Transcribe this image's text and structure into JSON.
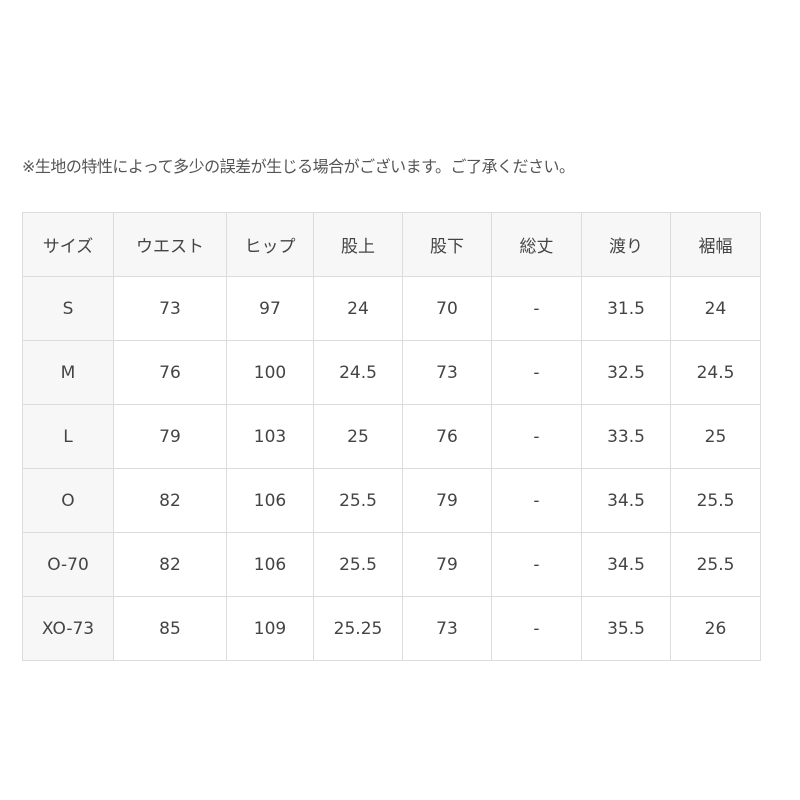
{
  "note": "※生地の特性によって多少の誤差が生じる場合がございます。ご了承ください。",
  "table": {
    "headers": [
      "サイズ",
      "ウエスト",
      "ヒップ",
      "股上",
      "股下",
      "総丈",
      "渡り",
      "裾幅"
    ],
    "rows": [
      [
        "S",
        "73",
        "97",
        "24",
        "70",
        "-",
        "31.5",
        "24"
      ],
      [
        "M",
        "76",
        "100",
        "24.5",
        "73",
        "-",
        "32.5",
        "24.5"
      ],
      [
        "L",
        "79",
        "103",
        "25",
        "76",
        "-",
        "33.5",
        "25"
      ],
      [
        "O",
        "82",
        "106",
        "25.5",
        "79",
        "-",
        "34.5",
        "25.5"
      ],
      [
        "O-70",
        "82",
        "106",
        "25.5",
        "79",
        "-",
        "34.5",
        "25.5"
      ],
      [
        "XO-73",
        "85",
        "109",
        "25.25",
        "73",
        "-",
        "35.5",
        "26"
      ]
    ]
  }
}
